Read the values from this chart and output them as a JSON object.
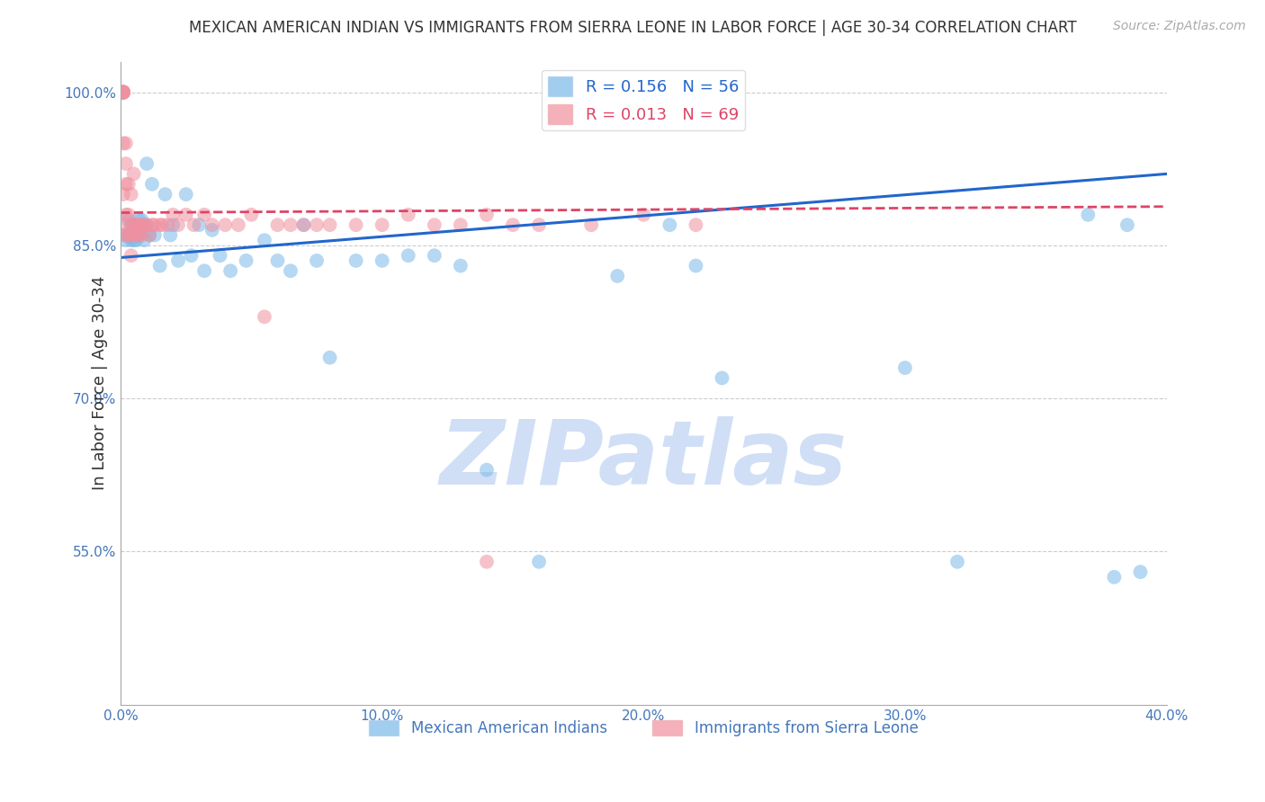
{
  "title": "MEXICAN AMERICAN INDIAN VS IMMIGRANTS FROM SIERRA LEONE IN LABOR FORCE | AGE 30-34 CORRELATION CHART",
  "source": "Source: ZipAtlas.com",
  "ylabel": "In Labor Force | Age 30-34",
  "xlim": [
    0.0,
    0.4
  ],
  "ylim": [
    0.4,
    1.03
  ],
  "xticks": [
    0.0,
    0.05,
    0.1,
    0.15,
    0.2,
    0.25,
    0.3,
    0.35,
    0.4
  ],
  "xticklabels": [
    "0.0%",
    "",
    "10.0%",
    "",
    "20.0%",
    "",
    "30.0%",
    "",
    "40.0%"
  ],
  "ytick_positions": [
    0.55,
    0.7,
    0.85,
    1.0
  ],
  "yticklabels": [
    "55.0%",
    "70.0%",
    "85.0%",
    "100.0%"
  ],
  "gridline_color": "#cccccc",
  "watermark": "ZIPatlas",
  "watermark_color": "#c8daf5",
  "blue_color": "#7ab8e8",
  "pink_color": "#f090a0",
  "blue_line_color": "#2266cc",
  "pink_line_color": "#dd4466",
  "legend_label_blue": "Mexican American Indians",
  "legend_label_pink": "Immigrants from Sierra Leone",
  "blue_x": [
    0.001,
    0.002,
    0.003,
    0.003,
    0.004,
    0.004,
    0.005,
    0.005,
    0.006,
    0.006,
    0.007,
    0.007,
    0.008,
    0.008,
    0.009,
    0.01,
    0.01,
    0.011,
    0.012,
    0.013,
    0.015,
    0.017,
    0.019,
    0.02,
    0.022,
    0.025,
    0.027,
    0.03,
    0.032,
    0.035,
    0.038,
    0.042,
    0.048,
    0.055,
    0.06,
    0.065,
    0.07,
    0.075,
    0.08,
    0.09,
    0.1,
    0.11,
    0.12,
    0.13,
    0.14,
    0.16,
    0.19,
    0.21,
    0.22,
    0.23,
    0.3,
    0.32,
    0.37,
    0.38,
    0.385,
    0.39
  ],
  "blue_y": [
    0.86,
    0.855,
    0.86,
    0.875,
    0.855,
    0.87,
    0.855,
    0.87,
    0.855,
    0.87,
    0.86,
    0.875,
    0.865,
    0.875,
    0.855,
    0.93,
    0.87,
    0.86,
    0.91,
    0.86,
    0.83,
    0.9,
    0.86,
    0.87,
    0.835,
    0.9,
    0.84,
    0.87,
    0.825,
    0.865,
    0.84,
    0.825,
    0.835,
    0.855,
    0.835,
    0.825,
    0.87,
    0.835,
    0.74,
    0.835,
    0.835,
    0.84,
    0.84,
    0.83,
    0.63,
    0.54,
    0.82,
    0.87,
    0.83,
    0.72,
    0.73,
    0.54,
    0.88,
    0.525,
    0.87,
    0.53
  ],
  "pink_x": [
    0.001,
    0.001,
    0.001,
    0.001,
    0.001,
    0.001,
    0.001,
    0.001,
    0.001,
    0.001,
    0.001,
    0.001,
    0.002,
    0.002,
    0.002,
    0.002,
    0.002,
    0.002,
    0.003,
    0.003,
    0.003,
    0.003,
    0.004,
    0.004,
    0.004,
    0.005,
    0.005,
    0.005,
    0.006,
    0.006,
    0.007,
    0.007,
    0.008,
    0.008,
    0.009,
    0.01,
    0.011,
    0.012,
    0.013,
    0.015,
    0.016,
    0.018,
    0.02,
    0.022,
    0.025,
    0.028,
    0.032,
    0.035,
    0.04,
    0.045,
    0.05,
    0.055,
    0.06,
    0.065,
    0.07,
    0.075,
    0.08,
    0.09,
    0.1,
    0.11,
    0.12,
    0.13,
    0.14,
    0.15,
    0.16,
    0.18,
    0.2,
    0.22,
    0.14
  ],
  "pink_y": [
    1.0,
    1.0,
    1.0,
    1.0,
    1.0,
    1.0,
    1.0,
    1.0,
    1.0,
    1.0,
    0.95,
    0.9,
    0.88,
    0.91,
    0.87,
    0.93,
    0.86,
    0.95,
    0.86,
    0.88,
    0.91,
    0.86,
    0.87,
    0.9,
    0.84,
    0.87,
    0.86,
    0.92,
    0.87,
    0.86,
    0.87,
    0.86,
    0.87,
    0.86,
    0.87,
    0.87,
    0.86,
    0.87,
    0.87,
    0.87,
    0.87,
    0.87,
    0.88,
    0.87,
    0.88,
    0.87,
    0.88,
    0.87,
    0.87,
    0.87,
    0.88,
    0.78,
    0.87,
    0.87,
    0.87,
    0.87,
    0.87,
    0.87,
    0.87,
    0.88,
    0.87,
    0.87,
    0.88,
    0.87,
    0.87,
    0.87,
    0.88,
    0.87,
    0.54
  ],
  "blue_trend_x": [
    0.0,
    0.4
  ],
  "blue_trend_y": [
    0.838,
    0.92
  ],
  "pink_trend_x": [
    0.0,
    0.4
  ],
  "pink_trend_y": [
    0.882,
    0.888
  ]
}
